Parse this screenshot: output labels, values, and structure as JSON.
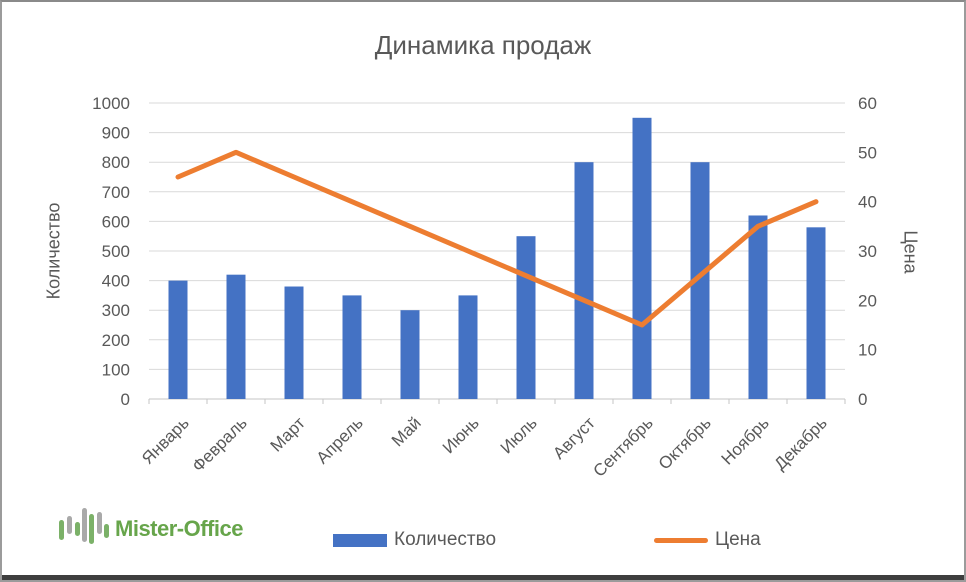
{
  "title": "Динамика продаж",
  "chart_data": {
    "type": "combo",
    "title": "Динамика продаж",
    "categories": [
      "Январь",
      "Февраль",
      "Март",
      "Апрель",
      "Май",
      "Июнь",
      "Июль",
      "Август",
      "Сентябрь",
      "Октябрь",
      "Ноябрь",
      "Декабрь"
    ],
    "series": [
      {
        "name": "Количество",
        "type": "bar",
        "axis": "left",
        "color": "#4472C4",
        "values": [
          400,
          420,
          380,
          350,
          300,
          350,
          550,
          800,
          950,
          800,
          620,
          580
        ]
      },
      {
        "name": "Цена",
        "type": "line",
        "axis": "right",
        "color": "#ED7D31",
        "values": [
          45,
          50,
          45,
          40,
          35,
          30,
          25,
          20,
          15,
          25,
          35,
          40
        ]
      }
    ],
    "left_axis": {
      "title": "Количество",
      "min": 0,
      "max": 1000,
      "step": 100,
      "tick_labels": [
        "0",
        "100",
        "200",
        "300",
        "400",
        "500",
        "600",
        "700",
        "800",
        "900",
        "1000"
      ]
    },
    "right_axis": {
      "title": "Цена",
      "min": 0,
      "max": 60,
      "step": 10,
      "tick_labels": [
        "0",
        "10",
        "20",
        "30",
        "40",
        "50",
        "60"
      ]
    },
    "x_axis": {
      "label_rotation_deg": -45
    },
    "grid": true,
    "legend_position": "bottom",
    "colors": {
      "grid": "#D9D9D9",
      "axis_line": "#C6C6C6",
      "tick": "#C6C6C6",
      "text": "#595959"
    }
  },
  "legend": {
    "items": [
      {
        "label": "Количество",
        "swatch": "bar",
        "color": "#4472C4"
      },
      {
        "label": "Цена",
        "swatch": "line",
        "color": "#ED7D31"
      }
    ]
  },
  "logo": {
    "text": "Mister-Office",
    "text_color": "#67a54b",
    "icon_green": "#7bb168",
    "icon_gray": "#a9a9a9"
  },
  "frame": {
    "background": "#ffffff",
    "border_color": "#9b9b9b",
    "bottom_strip_color": "#3e3e3e"
  }
}
